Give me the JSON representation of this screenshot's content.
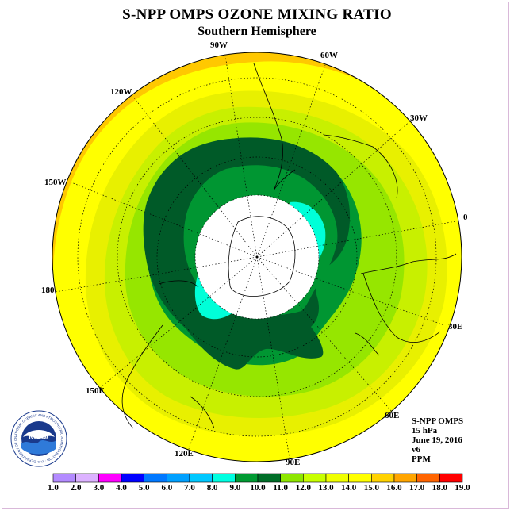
{
  "header": {
    "title": "S-NPP OMPS OZONE MIXING RATIO",
    "subtitle": "Southern Hemisphere"
  },
  "longitude_labels": [
    "90W",
    "60W",
    "30W",
    "0",
    "30E",
    "60E",
    "90E",
    "120E",
    "150E",
    "180",
    "150W",
    "120W"
  ],
  "info": {
    "instrument": "S-NPP OMPS",
    "level": "15 hPa",
    "date": "June 19, 2016",
    "version": "v6",
    "units": "PPM"
  },
  "logo": {
    "text": "NOAA",
    "ring_text": "NATIONAL OCEANIC AND ATMOSPHERIC ADMINISTRATION · U.S. DEPARTMENT OF COMMERCE"
  },
  "colorbar": {
    "ticks": [
      "1.0",
      "2.0",
      "3.0",
      "4.0",
      "5.0",
      "6.0",
      "7.0",
      "8.0",
      "9.0",
      "10.0",
      "11.0",
      "12.0",
      "13.0",
      "14.0",
      "15.0",
      "16.0",
      "17.0",
      "18.0",
      "19.0"
    ],
    "colors": [
      "#b38bff",
      "#dcb2ff",
      "#ff00ff",
      "#0000ff",
      "#0078ff",
      "#00a0ff",
      "#00c8ff",
      "#00ffe1",
      "#009a32",
      "#006e28",
      "#8ee600",
      "#c8ff00",
      "#f0ff00",
      "#ffff00",
      "#ffd200",
      "#ffa500",
      "#ff6400",
      "#ff0000",
      "#8b4513"
    ]
  },
  "map": {
    "colors": {
      "orange": "#ffc800",
      "yellow": "#ffff00",
      "lightyellow": "#e8f000",
      "lime": "#c8f000",
      "green1": "#96e600",
      "green2": "#009632",
      "darkgreen": "#005a28",
      "cyan": "#00ffd8",
      "white": "#ffffff"
    }
  }
}
